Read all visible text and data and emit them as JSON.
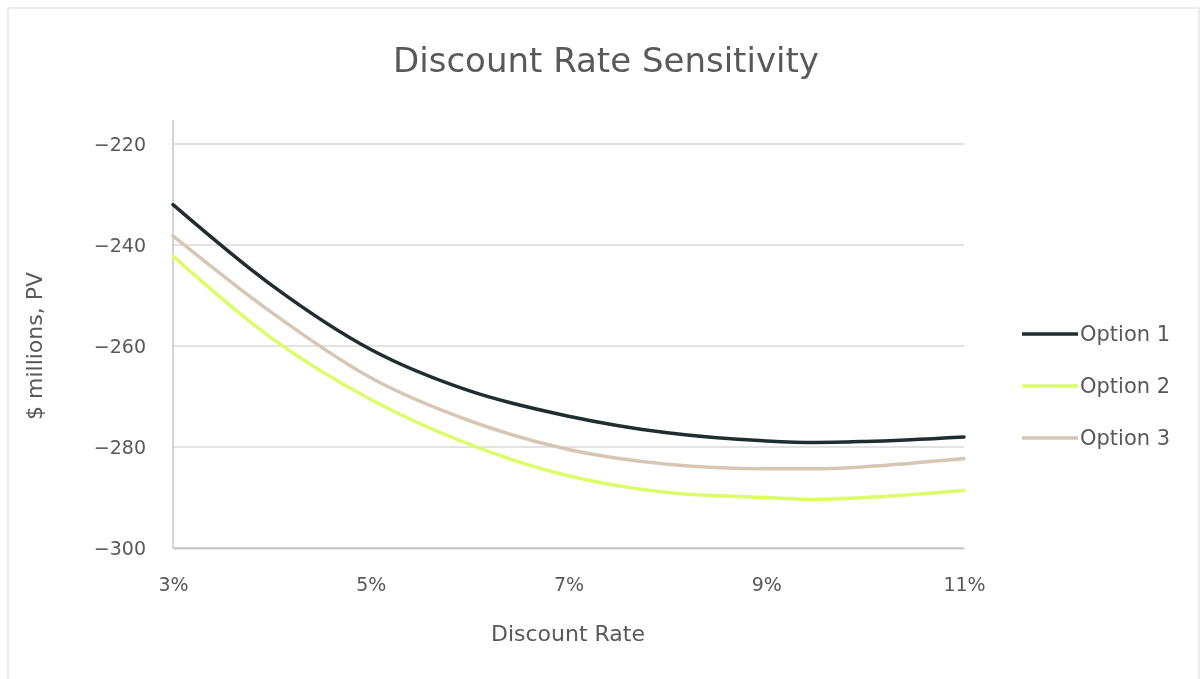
{
  "chart_data": {
    "type": "line",
    "title": "Discount Rate Sensitivity",
    "xlabel": "Discount Rate",
    "ylabel": "$ millions, PV",
    "x": [
      3,
      4,
      5,
      6,
      7,
      8,
      9,
      9.5,
      10,
      11
    ],
    "series": [
      {
        "name": "Option 1",
        "color": "#1f2d30",
        "values": [
          -232,
          -248,
          -260.7,
          -268.9,
          -273.9,
          -277.2,
          -278.8,
          -279.1,
          -278.9,
          -278
        ]
      },
      {
        "name": "Option 2",
        "color": "#dcfd6a",
        "values": [
          -242.2,
          -258.5,
          -270.6,
          -279.5,
          -285.7,
          -289,
          -290,
          -290.4,
          -290,
          -288.6
        ]
      },
      {
        "name": "Option 3",
        "color": "#d6c7b5",
        "values": [
          -238.2,
          -253.4,
          -266.3,
          -274.8,
          -280.5,
          -283.4,
          -284.3,
          -284.3,
          -283.9,
          -282.3
        ]
      }
    ],
    "xlim": [
      3,
      11
    ],
    "xticks": [
      {
        "value": 3,
        "label": "3%"
      },
      {
        "value": 5,
        "label": "5%"
      },
      {
        "value": 7,
        "label": "7%"
      },
      {
        "value": 9,
        "label": "9%"
      },
      {
        "value": 11,
        "label": "11%"
      }
    ],
    "ylim": [
      -300,
      -220
    ],
    "yticks": [
      {
        "value": -300,
        "label": "−300"
      },
      {
        "value": -280,
        "label": "−280"
      },
      {
        "value": -260,
        "label": "−260"
      },
      {
        "value": -240,
        "label": "−240"
      },
      {
        "value": -220,
        "label": "−220"
      }
    ],
    "grid": "y",
    "legend": "right",
    "marker": "none",
    "line_style": "solid"
  }
}
